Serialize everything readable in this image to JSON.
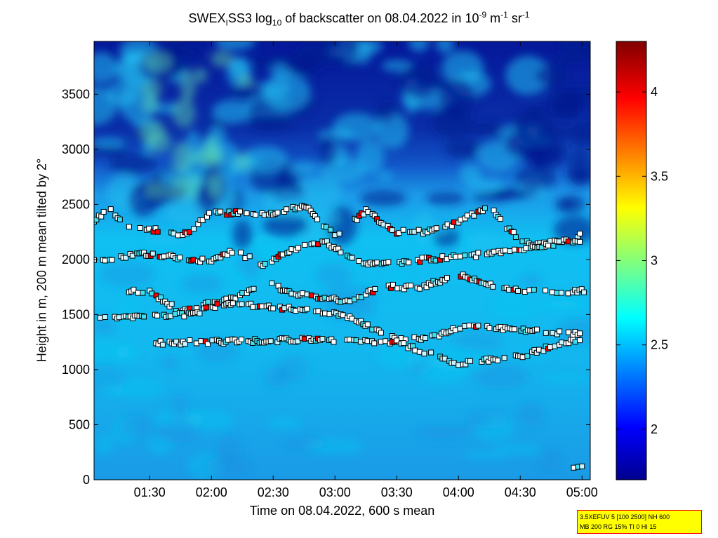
{
  "title": {
    "prefix": "SWEX",
    "sub1": "I",
    "mid": "SS3 log",
    "sub2": "10",
    "after": " of backscatter on 08.04.2022 in 10",
    "sup1": "-9",
    "unit_m": " m",
    "sup2": "-1",
    "unit_sr": " sr",
    "sup3": "-1"
  },
  "info_box": {
    "line1": "3.5XEFUV 5 [100 2500] NH 600",
    "line2": "MB 200 RG 15% TI 0 HI 15",
    "background": "#ffff00",
    "border": "#ff0000"
  },
  "chart_data": {
    "type": "heatmap",
    "xlabel": "Time on 08.04.2022, 600 s mean",
    "ylabel": "Height in m, 200 m mean tilted by 2°",
    "x_ticks": [
      "01:30",
      "02:00",
      "02:30",
      "03:00",
      "03:30",
      "04:00",
      "04:30",
      "05:00"
    ],
    "x_tick_minutes": [
      90,
      120,
      150,
      180,
      210,
      240,
      270,
      300
    ],
    "xlim_minutes": [
      63,
      304
    ],
    "y_ticks": [
      0,
      500,
      1000,
      1500,
      2000,
      2500,
      3000,
      3500
    ],
    "ylim": [
      0,
      3980
    ],
    "colorbar": {
      "ticks": [
        2,
        2.5,
        3,
        3.5,
        4
      ],
      "range": [
        1.7,
        4.3
      ],
      "colormap": "jet"
    },
    "layer_markers": [
      {
        "layer": "upper-cloud-base",
        "t": [
          63,
          70,
          80,
          95,
          105,
          120,
          135,
          150,
          165,
          180,
          195,
          210,
          225,
          240,
          255,
          270,
          285,
          300
        ],
        "h": [
          2340,
          2460,
          2300,
          2260,
          2200,
          2430,
          2420,
          2410,
          2490,
          2220,
          2440,
          2250,
          2250,
          2340,
          2480,
          2160,
          2120,
          2230
        ]
      },
      {
        "layer": "lower-2000m",
        "t": [
          63,
          75,
          85,
          120,
          130,
          145,
          160,
          175,
          195,
          230,
          255,
          275,
          290,
          300
        ],
        "h": [
          1990,
          2020,
          2060,
          1980,
          2080,
          1960,
          2100,
          2160,
          1950,
          2010,
          2050,
          2100,
          2180,
          2150
        ]
      },
      {
        "layer": "1700m",
        "t": [
          80,
          90,
          105,
          135,
          145,
          160,
          175,
          185,
          205,
          220,
          240,
          260,
          290,
          302
        ],
        "h": [
          1720,
          1700,
          1530,
          1680,
          1800,
          1690,
          1650,
          1620,
          1760,
          1740,
          1860,
          1740,
          1700,
          1720
        ]
      },
      {
        "layer": "1450m",
        "t": [
          66,
          72,
          110,
          125,
          150,
          185,
          210,
          225,
          243,
          300
        ],
        "h": [
          1460,
          1480,
          1500,
          1600,
          1570,
          1500,
          1270,
          1280,
          1400,
          1320
        ]
      },
      {
        "layer": "low-1000m",
        "t": [
          92,
          163,
          210,
          240,
          248,
          270,
          278,
          300
        ],
        "h": [
          1240,
          1270,
          1250,
          1050,
          1070,
          1120,
          1170,
          1280
        ]
      },
      {
        "layer": "surface",
        "t": [
          296,
          300,
          303
        ],
        "h": [
          110,
          120,
          140
        ]
      }
    ]
  }
}
